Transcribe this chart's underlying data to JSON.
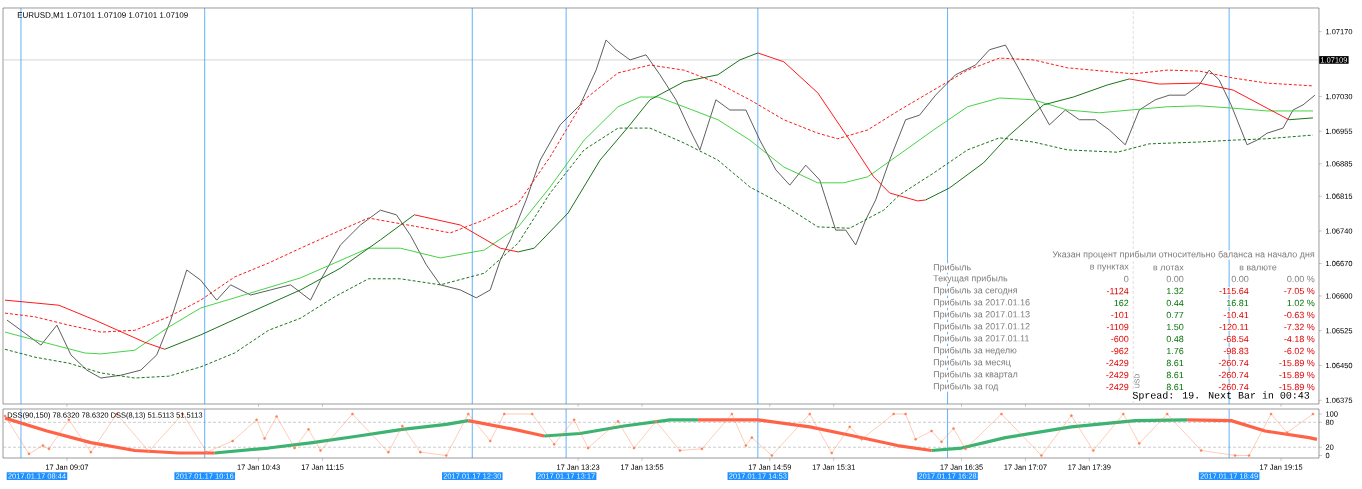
{
  "chart_data": [
    {
      "type": "line",
      "title": "EURUSD,M1 1.07101 1.07109 1.07101 1.07109",
      "xlim": [
        "2017-01-17T08:35",
        "2017-01-17T19:34"
      ],
      "ylim": [
        1.06367,
        1.07221
      ],
      "tick_labels": "y",
      "xticks": [
        {
          "value": "2017-01-17T09:07",
          "label": null
        },
        {
          "value": "2017-01-17T10:43",
          "label": null
        },
        {
          "value": "2017-01-17T11:15",
          "label": null
        },
        {
          "value": "2017-01-17T13:23",
          "label": null
        },
        {
          "value": "2017-01-17T13:55",
          "label": null
        },
        {
          "value": "2017-01-17T14:59",
          "label": null
        },
        {
          "value": "2017-01-17T15:31",
          "label": null
        },
        {
          "value": "2017-01-17T16:35",
          "label": null
        },
        {
          "value": "2017-01-17T17:07",
          "label": null
        },
        {
          "value": "2017-01-17T17:39",
          "label": null
        },
        {
          "value": "2017-01-17T19:15",
          "label": null
        }
      ],
      "yticks": [
        {
          "value": 1.0717,
          "label": "1.07170"
        },
        {
          "value": 1.0703,
          "label": "1.07030"
        },
        {
          "value": 1.06955,
          "label": "1.06955"
        },
        {
          "value": 1.06885,
          "label": "1.06885"
        },
        {
          "value": 1.06815,
          "label": "1.06815"
        },
        {
          "value": 1.0674,
          "label": "1.06740"
        },
        {
          "value": 1.0667,
          "label": "1.06670"
        },
        {
          "value": 1.066,
          "label": "1.06600"
        },
        {
          "value": 1.06525,
          "label": "1.06525"
        },
        {
          "value": 1.0645,
          "label": "1.06450"
        },
        {
          "value": 1.06375,
          "label": "1.06375"
        }
      ],
      "series": [
        {
          "color": "#4d4d4d",
          "line_style": "solid",
          "x": [
            "2017-01-17T08:37",
            "2017-01-17T08:44",
            "2017-01-17T08:54",
            "2017-01-17T09:02",
            "2017-01-17T09:09",
            "2017-01-17T09:17",
            "2017-01-17T09:24",
            "2017-01-17T09:34",
            "2017-01-17T09:44",
            "2017-01-17T09:52",
            "2017-01-17T09:59",
            "2017-01-17T10:07",
            "2017-01-17T10:14",
            "2017-01-17T10:22",
            "2017-01-17T10:29",
            "2017-01-17T10:39",
            "2017-01-17T10:49",
            "2017-01-17T10:59",
            "2017-01-17T11:09",
            "2017-01-17T11:14",
            "2017-01-17T11:24",
            "2017-01-17T11:34",
            "2017-01-17T11:44",
            "2017-01-17T11:52",
            "2017-01-17T11:59",
            "2017-01-17T12:07",
            "2017-01-17T12:14",
            "2017-01-17T12:24",
            "2017-01-17T12:32",
            "2017-01-17T12:39",
            "2017-01-17T12:44",
            "2017-01-17T12:49",
            "2017-01-17T12:57",
            "2017-01-17T13:04",
            "2017-01-17T13:14",
            "2017-01-17T13:24",
            "2017-01-17T13:32",
            "2017-01-17T13:37",
            "2017-01-17T13:42",
            "2017-01-17T13:49",
            "2017-01-17T13:57",
            "2017-01-17T14:04",
            "2017-01-17T14:12",
            "2017-01-17T14:19",
            "2017-01-17T14:24",
            "2017-01-17T14:32",
            "2017-01-17T14:39",
            "2017-01-17T14:47",
            "2017-01-17T14:54",
            "2017-01-17T15:02",
            "2017-01-17T15:09",
            "2017-01-17T15:17",
            "2017-01-17T15:24",
            "2017-01-17T15:32",
            "2017-01-17T15:37",
            "2017-01-17T15:42",
            "2017-01-17T15:47",
            "2017-01-17T15:52",
            "2017-01-17T15:59",
            "2017-01-17T16:07",
            "2017-01-17T16:14",
            "2017-01-17T16:22",
            "2017-01-17T16:32",
            "2017-01-17T16:42",
            "2017-01-17T16:49",
            "2017-01-17T16:57",
            "2017-01-17T17:04",
            "2017-01-17T17:12",
            "2017-01-17T17:19",
            "2017-01-17T17:27",
            "2017-01-17T17:34",
            "2017-01-17T17:42",
            "2017-01-17T17:49",
            "2017-01-17T17:57",
            "2017-01-17T18:04",
            "2017-01-17T18:12",
            "2017-01-17T18:19",
            "2017-01-17T18:27",
            "2017-01-17T18:34",
            "2017-01-17T18:39",
            "2017-01-17T18:44",
            "2017-01-17T18:50",
            "2017-01-17T18:58",
            "2017-01-17T19:03",
            "2017-01-17T19:08",
            "2017-01-17T19:16",
            "2017-01-17T19:21",
            "2017-01-17T19:26",
            "2017-01-17T19:32"
          ],
          "values": [
            1.06548,
            1.06526,
            1.06494,
            1.06537,
            1.06473,
            1.0644,
            1.06423,
            1.06429,
            1.0644,
            1.06473,
            1.06548,
            1.06656,
            1.06634,
            1.06591,
            1.06624,
            1.06602,
            1.06613,
            1.06624,
            1.06591,
            1.06634,
            1.0671,
            1.06753,
            1.06785,
            1.06775,
            1.06731,
            1.06667,
            1.06624,
            1.06613,
            1.06596,
            1.06613,
            1.06677,
            1.06721,
            1.06807,
            1.06893,
            1.06969,
            1.07012,
            1.07087,
            1.07152,
            1.07131,
            1.07109,
            1.0712,
            1.07077,
            1.07023,
            1.06958,
            1.06915,
            1.07023,
            1.07001,
            1.07001,
            1.06936,
            1.06872,
            1.06839,
            1.06882,
            1.0685,
            1.06742,
            1.06742,
            1.0671,
            1.06764,
            1.06807,
            1.06893,
            1.0698,
            1.0699,
            1.07033,
            1.07077,
            1.07098,
            1.07131,
            1.07141,
            1.07087,
            1.07023,
            1.06969,
            1.07001,
            1.0698,
            1.0698,
            1.06958,
            1.06926,
            1.07001,
            1.07023,
            1.07033,
            1.07033,
            1.07055,
            1.07087,
            1.07066,
            1.07012,
            1.06926,
            1.06936,
            1.06951,
            1.06962,
            1.07001,
            1.07012,
            1.07033
          ]
        },
        {
          "color": "#ff0000",
          "line_style": "dashed",
          "x": [
            "2017-01-17T08:36",
            "2017-01-17T08:51",
            "2017-01-17T09:08",
            "2017-01-17T09:24",
            "2017-01-17T09:41",
            "2017-01-17T09:58",
            "2017-01-17T10:14",
            "2017-01-17T10:31",
            "2017-01-17T10:48",
            "2017-01-17T11:04",
            "2017-01-17T11:21",
            "2017-01-17T11:38",
            "2017-01-17T12:03",
            "2017-01-17T12:19",
            "2017-01-17T12:36",
            "2017-01-17T12:53",
            "2017-01-17T13:09",
            "2017-01-17T13:26",
            "2017-01-17T13:43",
            "2017-01-17T13:59",
            "2017-01-17T14:16",
            "2017-01-17T14:33",
            "2017-01-17T14:49",
            "2017-01-17T15:06",
            "2017-01-17T15:23",
            "2017-01-17T15:33",
            "2017-01-17T15:48",
            "2017-01-17T16:04",
            "2017-01-17T16:21",
            "2017-01-17T16:38",
            "2017-01-17T16:54",
            "2017-01-17T17:11",
            "2017-01-17T17:28",
            "2017-01-17T18:01",
            "2017-01-17T18:18",
            "2017-01-17T18:34",
            "2017-01-17T18:51",
            "2017-01-17T19:08",
            "2017-01-17T19:31"
          ],
          "values": [
            1.06563,
            1.06555,
            1.06537,
            1.06522,
            1.06526,
            1.06555,
            1.06591,
            1.06641,
            1.06671,
            1.06703,
            1.06736,
            1.06768,
            1.06749,
            1.06736,
            1.06764,
            1.068,
            1.069,
            1.07023,
            1.07081,
            1.07098,
            1.07087,
            1.07059,
            1.07023,
            1.0698,
            1.06951,
            1.06939,
            1.06958,
            1.07001,
            1.07044,
            1.07087,
            1.07113,
            1.07109,
            1.07092,
            1.07079,
            1.07087,
            1.07085,
            1.0707,
            1.07059,
            1.07053
          ]
        },
        {
          "color": "#006400",
          "line_style": "dashed",
          "x": [
            "2017-01-17T08:36",
            "2017-01-17T08:51",
            "2017-01-17T09:08",
            "2017-01-17T09:24",
            "2017-01-17T09:41",
            "2017-01-17T09:58",
            "2017-01-17T10:14",
            "2017-01-17T10:31",
            "2017-01-17T10:48",
            "2017-01-17T11:04",
            "2017-01-17T11:21",
            "2017-01-17T11:38",
            "2017-01-17T11:54",
            "2017-01-17T12:14",
            "2017-01-17T12:36",
            "2017-01-17T12:53",
            "2017-01-17T13:09",
            "2017-01-17T13:26",
            "2017-01-17T13:43",
            "2017-01-17T13:59",
            "2017-01-17T14:16",
            "2017-01-17T14:33",
            "2017-01-17T14:49",
            "2017-01-17T15:06",
            "2017-01-17T15:23",
            "2017-01-17T15:39",
            "2017-01-17T15:56",
            "2017-01-17T16:04",
            "2017-01-17T16:21",
            "2017-01-17T16:38",
            "2017-01-17T16:54",
            "2017-01-17T17:11",
            "2017-01-17T17:28",
            "2017-01-17T17:53",
            "2017-01-17T18:09",
            "2017-01-17T18:34",
            "2017-01-17T18:51",
            "2017-01-17T19:08",
            "2017-01-17T19:31"
          ],
          "values": [
            1.06485,
            1.06468,
            1.06455,
            1.06434,
            1.06423,
            1.06427,
            1.06447,
            1.06477,
            1.06526,
            1.06552,
            1.06598,
            1.06637,
            1.06637,
            1.06624,
            1.06649,
            1.06714,
            1.06822,
            1.06915,
            1.06962,
            1.06962,
            1.0693,
            1.06893,
            1.06835,
            1.06796,
            1.06749,
            1.06746,
            1.06785,
            1.06818,
            1.06865,
            1.06915,
            1.06941,
            1.06932,
            1.06915,
            1.0691,
            1.06928,
            1.06932,
            1.06936,
            1.06939,
            1.06947
          ]
        },
        {
          "color": "#32cd32",
          "line_style": "solid",
          "x": [
            "2017-01-17T08:36",
            "2017-01-17T08:51",
            "2017-01-17T09:16",
            "2017-01-17T09:24",
            "2017-01-17T09:41",
            "2017-01-17T09:58",
            "2017-01-17T10:14",
            "2017-01-17T10:31",
            "2017-01-17T11:04",
            "2017-01-17T11:21",
            "2017-01-17T11:38",
            "2017-01-17T11:54",
            "2017-01-17T12:14",
            "2017-01-17T12:36",
            "2017-01-17T12:53",
            "2017-01-17T13:09",
            "2017-01-17T13:26",
            "2017-01-17T13:43",
            "2017-01-17T13:54",
            "2017-01-17T14:03",
            "2017-01-17T14:16",
            "2017-01-17T14:33",
            "2017-01-17T14:49",
            "2017-01-17T15:06",
            "2017-01-17T15:23",
            "2017-01-17T15:36",
            "2017-01-17T15:48",
            "2017-01-17T16:09",
            "2017-01-17T16:21",
            "2017-01-17T16:38",
            "2017-01-17T16:54",
            "2017-01-17T17:11",
            "2017-01-17T17:28",
            "2017-01-17T17:44",
            "2017-01-17T18:18",
            "2017-01-17T18:34",
            "2017-01-17T18:51",
            "2017-01-17T19:08",
            "2017-01-17T19:31"
          ],
          "values": [
            1.06522,
            1.06505,
            1.06477,
            1.06475,
            1.06483,
            1.06533,
            1.06574,
            1.06596,
            1.06639,
            1.06671,
            1.06703,
            1.06703,
            1.06682,
            1.06699,
            1.06749,
            1.06835,
            1.06936,
            1.07008,
            1.07029,
            1.07029,
            1.07008,
            1.0698,
            1.06936,
            1.06878,
            1.06844,
            1.06844,
            1.06857,
            1.06921,
            1.06958,
            1.07008,
            1.07027,
            1.07023,
            1.07001,
            1.06995,
            1.07008,
            1.0701,
            1.07005,
            1.06999,
            1.06999
          ]
        },
        {
          "color": "#ff0000",
          "line_style": "solid",
          "x": [
            "2017-01-17T08:36",
            "2017-01-17T09:03",
            "2017-01-17T09:21",
            "2017-01-17T09:46",
            "2017-01-17T09:56",
            "2017-01-17T10:39",
            "2017-01-17T12:01",
            "2017-01-17T12:24",
            "2017-01-17T12:44",
            "2017-01-17T12:53",
            "2017-01-17T13:59",
            "2017-01-17T14:53",
            "2017-01-17T15:06",
            "2017-01-17T15:23",
            "2017-01-17T15:39",
            "2017-01-17T15:51",
            "2017-01-17T15:59",
            "2017-01-17T16:13",
            "2017-01-17T16:17",
            "2017-01-17T16:54",
            "2017-01-17T17:59",
            "2017-01-17T18:14",
            "2017-01-17T18:34",
            "2017-01-17T18:51",
            "2017-01-17T19:08",
            "2017-01-17T19:19"
          ],
          "values": [
            1.06591,
            1.0658,
            1.06548,
            1.065,
            1.06485,
            null,
            1.06775,
            1.06753,
            1.06703,
            1.06695,
            null,
            1.07124,
            1.07105,
            1.07038,
            1.06936,
            1.06857,
            1.06822,
            1.06805,
            1.06807,
            null,
            1.07068,
            1.07057,
            1.07059,
            1.07044,
            1.07005,
            1.0698
          ]
        },
        {
          "color": "#006400",
          "line_style": "solid",
          "x": [
            "2017-01-17T09:56",
            "2017-01-17T10:14",
            "2017-01-17T10:39",
            "2017-01-17T11:04",
            "2017-01-17T11:24",
            "2017-01-17T11:44",
            "2017-01-17T12:01",
            "2017-01-17T12:24",
            "2017-01-17T12:53",
            "2017-01-17T13:01",
            "2017-01-17T13:18",
            "2017-01-17T13:34",
            "2017-01-17T13:48",
            "2017-01-17T13:59",
            "2017-01-17T14:16",
            "2017-01-17T14:33",
            "2017-01-17T14:44",
            "2017-01-17T14:53",
            "2017-01-17T15:39",
            "2017-01-17T16:17",
            "2017-01-17T16:29",
            "2017-01-17T16:46",
            "2017-01-17T16:58",
            "2017-01-17T17:16",
            "2017-01-17T17:31",
            "2017-01-17T17:48",
            "2017-01-17T17:59",
            "2017-01-17T18:34",
            "2017-01-17T19:19",
            "2017-01-17T19:31"
          ],
          "values": [
            1.06485,
            1.06516,
            1.06565,
            1.06613,
            1.0666,
            1.06721,
            1.06775,
            null,
            1.06695,
            1.06703,
            1.06779,
            1.06893,
            1.06964,
            1.07023,
            1.07062,
            1.07077,
            1.07109,
            1.07124,
            null,
            1.06807,
            1.06833,
            1.06887,
            1.06943,
            1.07012,
            1.07029,
            1.07055,
            1.07068,
            null,
            1.0698,
            1.06984
          ]
        }
      ],
      "ref_lines": [
        {
          "axis": "y",
          "value": 1.07109,
          "label": "1.07109",
          "color": "#c0c0c0",
          "line_style": "solid"
        },
        {
          "axis": "x",
          "value": "2017-01-17T18:01",
          "color": "#d3d3d3",
          "line_style": "dashed"
        },
        {
          "axis": "x",
          "value": "2017-01-17T08:44",
          "color": "#1e90ff",
          "line_style": "solid"
        },
        {
          "axis": "x",
          "value": "2017-01-17T10:16",
          "color": "#1e90ff",
          "line_style": "solid"
        },
        {
          "axis": "x",
          "value": "2017-01-17T12:30",
          "color": "#1e90ff",
          "line_style": "solid"
        },
        {
          "axis": "x",
          "value": "2017-01-17T13:17",
          "color": "#1e90ff",
          "line_style": "solid"
        },
        {
          "axis": "x",
          "value": "2017-01-17T14:53",
          "color": "#1e90ff",
          "line_style": "solid"
        },
        {
          "axis": "x",
          "value": "2017-01-17T16:28",
          "color": "#1e90ff",
          "line_style": "solid"
        },
        {
          "axis": "x",
          "value": "2017-01-17T18:49",
          "color": "#1e90ff",
          "line_style": "solid"
        }
      ],
      "annotations": [
        "Указан процент прибыли относительно баланса на начало дня",
        "Прибыль",
        "в пунктах",
        "в лотах",
        "в валюте",
        "Текущая прибыль",
        "0",
        "0.00",
        "0.00",
        "0.00 %",
        "Прибыль за сегодня",
        "-1124",
        "1.32",
        "-115.64",
        "-7.05 %",
        "Прибыль за 2017.01.16",
        "162",
        "0.44",
        "16.81",
        "1.02 %",
        "Прибыль за 2017.01.13",
        "-101",
        "0.77",
        "-10.41",
        "-0.63 %",
        "Прибыль за 2017.01.12",
        "-1109",
        "1.50",
        "-120.11",
        "-7.32 %",
        "Прибыль за 2017.01.11",
        "-600",
        "0.48",
        "-68.54",
        "-4.18 %",
        "Прибыль за неделю",
        "-962",
        "1.76",
        "-98.83",
        "-6.02 %",
        "Прибыль за месяц",
        "-2429",
        "8.61",
        "-260.74",
        "-15.89 %",
        "Прибыль за квартал",
        "-2429",
        "8.61",
        "-260.74",
        "-15.89 %",
        "Прибыль за год",
        "-2429",
        "8.61",
        "-260.74",
        "-15.89 %",
        "Spread: 19. Next Bar in 00:43",
        "USD"
      ]
    },
    {
      "type": "line",
      "title": "DSS(90,150) 78.6320 78.6320  DSS(8,13) 51.5113 51.5113",
      "xlim": [
        "2017-01-17T08:35",
        "2017-01-17T19:34"
      ],
      "ylim": [
        -6,
        112
      ],
      "yticks": [
        0,
        20,
        80,
        100
      ],
      "xticks": [
        {
          "value": "2017-01-17T09:07",
          "label": "17 Jan 09:07"
        },
        {
          "value": "2017-01-17T10:43",
          "label": "17 Jan 10:43"
        },
        {
          "value": "2017-01-17T11:15",
          "label": "17 Jan 11:15"
        },
        {
          "value": "2017-01-17T13:23",
          "label": "17 Jan 13:23"
        },
        {
          "value": "2017-01-17T13:55",
          "label": "17 Jan 13:55"
        },
        {
          "value": "2017-01-17T14:59",
          "label": "17 Jan 14:59"
        },
        {
          "value": "2017-01-17T15:31",
          "label": "17 Jan 15:31"
        },
        {
          "value": "2017-01-17T16:35",
          "label": "17 Jan 16:35"
        },
        {
          "value": "2017-01-17T17:07",
          "label": "17 Jan 17:07"
        },
        {
          "value": "2017-01-17T17:39",
          "label": "17 Jan 17:39"
        },
        {
          "value": "2017-01-17T19:15",
          "label": "17 Jan 19:15"
        }
      ],
      "series": [
        {
          "color": "#ff6347",
          "line_style": "solid",
          "x": [
            "2017-01-17T08:36",
            "2017-01-17T08:57",
            "2017-01-17T09:19",
            "2017-01-17T09:41",
            "2017-01-17T10:03",
            "2017-01-17T10:21",
            "2017-01-17T11:04",
            "2017-01-17T12:28",
            "2017-01-17T12:51",
            "2017-01-17T13:06",
            "2017-01-17T13:44",
            "2017-01-17T14:23",
            "2017-01-17T14:53",
            "2017-01-17T15:19",
            "2017-01-17T15:41",
            "2017-01-17T16:03",
            "2017-01-17T16:20",
            "2017-01-17T17:19",
            "2017-01-17T18:28",
            "2017-01-17T18:50",
            "2017-01-17T19:07",
            "2017-01-17T19:29",
            "2017-01-17T19:33"
          ],
          "values": [
            90,
            59,
            31,
            12,
            6,
            6,
            null,
            84,
            63,
            47,
            null,
            86,
            86,
            69,
            47,
            24,
            12,
            null,
            86,
            84,
            59,
            43,
            39
          ]
        },
        {
          "color": "#3cb371",
          "line_style": "solid",
          "x": [
            "2017-01-17T10:21",
            "2017-01-17T10:48",
            "2017-01-17T11:10",
            "2017-01-17T11:33",
            "2017-01-17T11:55",
            "2017-01-17T12:17",
            "2017-01-17T12:28",
            "2017-01-17T12:44",
            "2017-01-17T13:06",
            "2017-01-17T13:24",
            "2017-01-17T13:46",
            "2017-01-17T14:09",
            "2017-01-17T14:23",
            "2017-01-17T15:14",
            "2017-01-17T16:20",
            "2017-01-17T16:35",
            "2017-01-17T16:57",
            "2017-01-17T17:30",
            "2017-01-17T18:02",
            "2017-01-17T18:28"
          ],
          "values": [
            6,
            18,
            31,
            47,
            63,
            75,
            84,
            null,
            47,
            53,
            71,
            86,
            86,
            null,
            12,
            18,
            43,
            69,
            84,
            86
          ]
        },
        {
          "color": "#ff7f50",
          "line_style": "solid",
          "marker": "circle",
          "x": [
            "2017-01-17T08:36",
            "2017-01-17T08:48",
            "2017-01-17T08:55",
            "2017-01-17T08:58",
            "2017-01-17T09:08",
            "2017-01-17T09:19",
            "2017-01-17T09:32",
            "2017-01-17T09:48",
            "2017-01-17T10:05",
            "2017-01-17T10:17",
            "2017-01-17T10:30",
            "2017-01-17T10:42",
            "2017-01-17T10:46",
            "2017-01-17T10:52",
            "2017-01-17T11:01",
            "2017-01-17T11:08",
            "2017-01-17T11:14",
            "2017-01-17T11:30",
            "2017-01-17T11:48",
            "2017-01-17T11:55",
            "2017-01-17T12:04",
            "2017-01-17T12:17",
            "2017-01-17T12:28",
            "2017-01-17T12:39",
            "2017-01-17T12:46",
            "2017-01-17T13:00",
            "2017-01-17T13:11",
            "2017-01-17T13:21",
            "2017-01-17T13:28",
            "2017-01-17T13:43",
            "2017-01-17T13:51",
            "2017-01-17T14:02",
            "2017-01-17T14:14",
            "2017-01-17T14:25",
            "2017-01-17T14:40",
            "2017-01-17T14:47",
            "2017-01-17T14:50",
            "2017-01-17T15:00",
            "2017-01-17T15:19",
            "2017-01-17T15:30",
            "2017-01-17T15:39",
            "2017-01-17T15:45",
            "2017-01-17T16:01",
            "2017-01-17T16:07",
            "2017-01-17T16:12",
            "2017-01-17T16:20",
            "2017-01-17T16:25",
            "2017-01-17T16:31",
            "2017-01-17T16:37",
            "2017-01-17T16:55",
            "2017-01-17T17:15",
            "2017-01-17T17:30",
            "2017-01-17T17:41",
            "2017-01-17T17:56",
            "2017-01-17T18:04",
            "2017-01-17T18:18",
            "2017-01-17T18:35",
            "2017-01-17T18:52",
            "2017-01-17T18:59",
            "2017-01-17T19:10",
            "2017-01-17T19:18",
            "2017-01-17T19:31"
          ],
          "values": [
            95,
            4,
            24,
            16,
            86,
            8,
            100,
            10,
            100,
            8,
            35,
            86,
            41,
            94,
            18,
            63,
            12,
            100,
            8,
            71,
            8,
            0,
            100,
            35,
            100,
            100,
            27,
            86,
            18,
            82,
            18,
            82,
            12,
            16,
            100,
            24,
            43,
            0,
            100,
            6,
            69,
            39,
            100,
            100,
            39,
            59,
            33,
            65,
            16,
            100,
            0,
            96,
            12,
            100,
            29,
            100,
            12,
            0,
            0,
            100,
            55,
            100
          ]
        }
      ],
      "ref_lines": [
        {
          "axis": "y",
          "value": 20,
          "color": "#b4b4b4",
          "line_style": "dashed"
        },
        {
          "axis": "y",
          "value": 80,
          "color": "#b4b4b4",
          "line_style": "dashed"
        },
        {
          "axis": "x",
          "value": "2017-01-17T08:44",
          "label": "2017.01.17 08:44",
          "color": "#1e90ff",
          "line_style": "solid"
        },
        {
          "axis": "x",
          "value": "2017-01-17T10:16",
          "label": "2017.01.17 10:16",
          "color": "#1e90ff",
          "line_style": "solid"
        },
        {
          "axis": "x",
          "value": "2017-01-17T12:30",
          "label": "2017.01.17 12:30",
          "color": "#1e90ff",
          "line_style": "solid"
        },
        {
          "axis": "x",
          "value": "2017-01-17T13:17",
          "label": "2017.01.17 13:17",
          "color": "#1e90ff",
          "line_style": "solid"
        },
        {
          "axis": "x",
          "value": "2017-01-17T14:53",
          "label": "2017.01.17 14:53",
          "color": "#1e90ff",
          "line_style": "solid"
        },
        {
          "axis": "x",
          "value": "2017-01-17T16:28",
          "label": "2017.01.17 16:28",
          "color": "#1e90ff",
          "line_style": "solid"
        },
        {
          "axis": "x",
          "value": "2017-01-17T18:49",
          "label": "2017.01.17 18:49",
          "color": "#1e90ff",
          "line_style": "solid"
        }
      ]
    }
  ]
}
